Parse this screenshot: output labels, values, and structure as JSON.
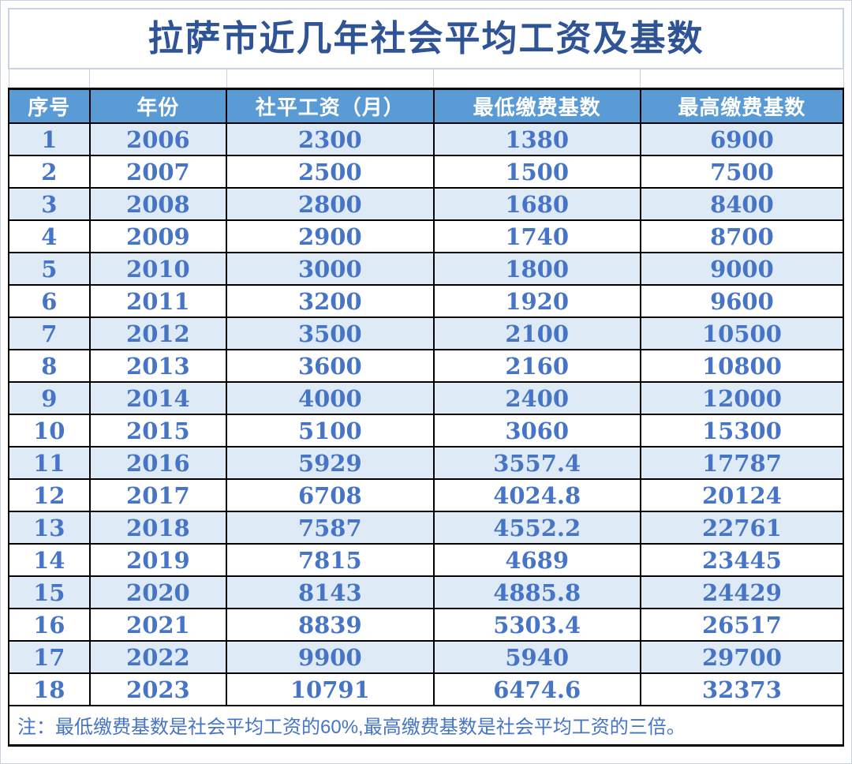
{
  "title": "拉萨市近几年社会平均工资及基数",
  "table": {
    "columns": [
      "序号",
      "年份",
      "社平工资（月）",
      "最低缴费基数",
      "最高缴费基数"
    ],
    "rows": [
      [
        "1",
        "2006",
        "2300",
        "1380",
        "6900"
      ],
      [
        "2",
        "2007",
        "2500",
        "1500",
        "7500"
      ],
      [
        "3",
        "2008",
        "2800",
        "1680",
        "8400"
      ],
      [
        "4",
        "2009",
        "2900",
        "1740",
        "8700"
      ],
      [
        "5",
        "2010",
        "3000",
        "1800",
        "9000"
      ],
      [
        "6",
        "2011",
        "3200",
        "1920",
        "9600"
      ],
      [
        "7",
        "2012",
        "3500",
        "2100",
        "10500"
      ],
      [
        "8",
        "2013",
        "3600",
        "2160",
        "10800"
      ],
      [
        "9",
        "2014",
        "4000",
        "2400",
        "12000"
      ],
      [
        "10",
        "2015",
        "5100",
        "3060",
        "15300"
      ],
      [
        "11",
        "2016",
        "5929",
        "3557.4",
        "17787"
      ],
      [
        "12",
        "2017",
        "6708",
        "4024.8",
        "20124"
      ],
      [
        "13",
        "2018",
        "7587",
        "4552.2",
        "22761"
      ],
      [
        "14",
        "2019",
        "7815",
        "4689",
        "23445"
      ],
      [
        "15",
        "2020",
        "8143",
        "4885.8",
        "24429"
      ],
      [
        "16",
        "2021",
        "8839",
        "5303.4",
        "26517"
      ],
      [
        "17",
        "2022",
        "9900",
        "5940",
        "29700"
      ],
      [
        "18",
        "2023",
        "10791",
        "6474.6",
        "32373"
      ]
    ],
    "note": "注：最低缴费基数是社会平均工资的60%,最高缴费基数是社会平均工资的三倍。"
  },
  "colors": {
    "header_bg": "#5B9BD5",
    "header_text": "#FFFFFF",
    "stripe_bg": "#DEEAF6",
    "row_bg": "#FFFFFF",
    "value_text": "#4674C6",
    "title_text": "#2F5496",
    "note_text": "#4674C6",
    "grid_line": "#000000",
    "light_line": "#C9D2E3",
    "frame_line": "#C9D2E3"
  }
}
